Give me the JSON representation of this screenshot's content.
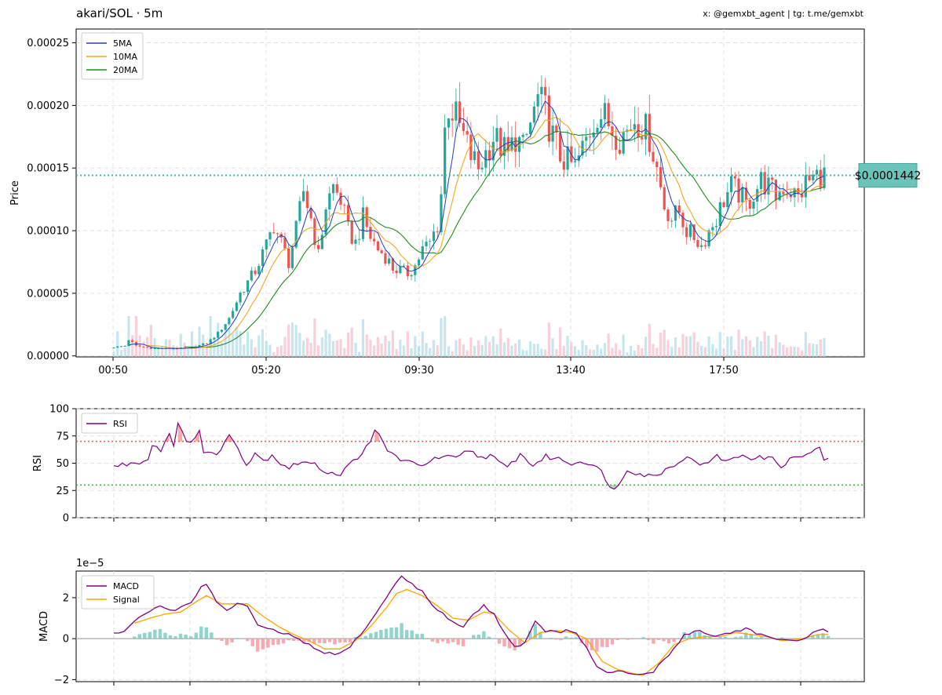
{
  "header": {
    "title": "akari/SOL · 5m",
    "credits": "x: @gemxbt_agent | tg: t.me/gemxbt"
  },
  "colors": {
    "up": "#26a69a",
    "down": "#ef5350",
    "ma5": "#1f3fbf",
    "ma10": "#f5a623",
    "ma20": "#228b22",
    "rsi": "#800080",
    "macd": "#800080",
    "signal": "#ffa500",
    "price_line": "#3fb8b0"
  },
  "chart_data": [
    {
      "type": "candlestick",
      "panel": "price",
      "ylabel": "Price",
      "ylim": [
        -8e-07,
        0.000261
      ],
      "yticks": [
        "0.00000",
        "0.00005",
        "0.00010",
        "0.00015",
        "0.00020",
        "0.00025"
      ],
      "ytick_values": [
        0,
        5e-05,
        0.0001,
        0.00015,
        0.0002,
        0.00025
      ],
      "xticks": [
        "00:50",
        "05:20",
        "09:30",
        "13:40",
        "17:50"
      ],
      "current_price": 0.0001442,
      "current_price_label": "$0.0001442",
      "legend": [
        "5MA",
        "10MA",
        "20MA"
      ],
      "legend_position": "top-left",
      "grid": true,
      "close_keypoints": [
        [
          0,
          7e-06
        ],
        [
          3,
          8e-06
        ],
        [
          4,
          1.3e-05
        ],
        [
          6,
          8e-06
        ],
        [
          10,
          6e-06
        ],
        [
          20,
          6e-06
        ],
        [
          25,
          1e-05
        ],
        [
          28,
          1.8e-05
        ],
        [
          31,
          3e-05
        ],
        [
          34,
          5e-05
        ],
        [
          38,
          6.8e-05
        ],
        [
          41,
          8.8e-05
        ],
        [
          43,
          0.000105
        ],
        [
          45,
          9e-05
        ],
        [
          47,
          7.5e-05
        ],
        [
          49,
          0.0001
        ],
        [
          51,
          0.000132
        ],
        [
          53,
          0.00011
        ],
        [
          55,
          8e-05
        ],
        [
          57,
          0.00012
        ],
        [
          59,
          0.000135
        ],
        [
          61,
          0.000125
        ],
        [
          63,
          0.0001
        ],
        [
          65,
          9e-05
        ],
        [
          67,
          0.00011
        ],
        [
          69,
          9.5e-05
        ],
        [
          71,
          8.5e-05
        ],
        [
          73,
          8e-05
        ],
        [
          75,
          7e-05
        ],
        [
          77,
          6.8e-05
        ],
        [
          79,
          6.6e-05
        ],
        [
          81,
          7.2e-05
        ],
        [
          83,
          8.5e-05
        ],
        [
          85,
          9e-05
        ],
        [
          87,
          0.000105
        ],
        [
          88,
          0.00013
        ],
        [
          89,
          0.00018
        ],
        [
          90,
          0.0002
        ],
        [
          92,
          0.00019
        ],
        [
          94,
          0.000175
        ],
        [
          96,
          0.00016
        ],
        [
          98,
          0.00015
        ],
        [
          100,
          0.000162
        ],
        [
          102,
          0.000175
        ],
        [
          104,
          0.000168
        ],
        [
          106,
          0.00016
        ],
        [
          108,
          0.000175
        ],
        [
          110,
          0.000165
        ],
        [
          112,
          0.000185
        ],
        [
          114,
          0.000205
        ],
        [
          116,
          0.000195
        ],
        [
          118,
          0.000175
        ],
        [
          120,
          0.00016
        ],
        [
          122,
          0.000155
        ],
        [
          124,
          0.00015
        ],
        [
          126,
          0.000165
        ],
        [
          128,
          0.00018
        ],
        [
          130,
          0.000195
        ],
        [
          132,
          0.00019
        ],
        [
          134,
          0.000182
        ],
        [
          136,
          0.000175
        ],
        [
          138,
          0.00018
        ],
        [
          140,
          0.00019
        ],
        [
          142,
          0.000185
        ],
        [
          144,
          0.000175
        ],
        [
          146,
          0.00015
        ],
        [
          148,
          0.00012
        ],
        [
          150,
          0.00011
        ],
        [
          152,
          0.000115
        ],
        [
          154,
          0.0001
        ],
        [
          156,
          9.5e-05
        ],
        [
          158,
          8.8e-05
        ],
        [
          160,
          0.0001
        ],
        [
          162,
          0.00011
        ],
        [
          164,
          0.000125
        ],
        [
          166,
          0.000135
        ],
        [
          168,
          0.00013
        ],
        [
          170,
          0.00012
        ],
        [
          172,
          0.00013
        ],
        [
          174,
          0.00014
        ],
        [
          176,
          0.000135
        ],
        [
          178,
          0.000128
        ],
        [
          180,
          0.000135
        ],
        [
          182,
          0.000132
        ],
        [
          184,
          0.000126
        ],
        [
          186,
          0.000138
        ],
        [
          188,
          0.000142
        ],
        [
          190,
          0.000145
        ],
        [
          191,
          0.000144
        ]
      ]
    },
    {
      "type": "line",
      "panel": "rsi",
      "ylabel": "RSI",
      "ylim": [
        0,
        100
      ],
      "yticks": [
        "0",
        "25",
        "50",
        "75",
        "100"
      ],
      "ytick_values": [
        0,
        25,
        50,
        75,
        100
      ],
      "overbought": 70,
      "oversold": 30,
      "legend": [
        "RSI"
      ],
      "legend_position": "top-left",
      "grid": true,
      "rsi_keypoints": [
        [
          0,
          47
        ],
        [
          4,
          50
        ],
        [
          8,
          53
        ],
        [
          9,
          68
        ],
        [
          11,
          62
        ],
        [
          13,
          78
        ],
        [
          14,
          68
        ],
        [
          15,
          86
        ],
        [
          17,
          68
        ],
        [
          19,
          75
        ],
        [
          20,
          80
        ],
        [
          21,
          60
        ],
        [
          23,
          58
        ],
        [
          25,
          62
        ],
        [
          27,
          76
        ],
        [
          29,
          66
        ],
        [
          31,
          48
        ],
        [
          33,
          60
        ],
        [
          35,
          52
        ],
        [
          37,
          58
        ],
        [
          39,
          50
        ],
        [
          41,
          46
        ],
        [
          44,
          52
        ],
        [
          47,
          48
        ],
        [
          50,
          42
        ],
        [
          53,
          40
        ],
        [
          56,
          52
        ],
        [
          58,
          60
        ],
        [
          60,
          68
        ],
        [
          61,
          79
        ],
        [
          62,
          76
        ],
        [
          64,
          62
        ],
        [
          66,
          56
        ],
        [
          68,
          52
        ],
        [
          71,
          48
        ],
        [
          74,
          52
        ],
        [
          77,
          56
        ],
        [
          80,
          54
        ],
        [
          83,
          62
        ],
        [
          86,
          55
        ],
        [
          88,
          58
        ],
        [
          90,
          50
        ],
        [
          92,
          46
        ],
        [
          95,
          58
        ],
        [
          98,
          48
        ],
        [
          101,
          56
        ],
        [
          104,
          54
        ],
        [
          107,
          50
        ],
        [
          110,
          52
        ],
        [
          112,
          48
        ],
        [
          114,
          42
        ],
        [
          116,
          30
        ],
        [
          117,
          25
        ],
        [
          118,
          30
        ],
        [
          120,
          45
        ],
        [
          123,
          40
        ],
        [
          126,
          38
        ],
        [
          129,
          44
        ],
        [
          132,
          52
        ],
        [
          135,
          55
        ],
        [
          138,
          48
        ],
        [
          141,
          56
        ],
        [
          144,
          52
        ],
        [
          147,
          58
        ],
        [
          150,
          54
        ],
        [
          153,
          56
        ],
        [
          156,
          48
        ],
        [
          159,
          55
        ],
        [
          162,
          58
        ],
        [
          165,
          63
        ],
        [
          166,
          54
        ],
        [
          167,
          54
        ]
      ]
    },
    {
      "type": "line+bar",
      "panel": "macd",
      "ylabel": "MACD",
      "scale_label": "1e−5",
      "ylim": [
        -2.1,
        3.3
      ],
      "yticks": [
        "−2",
        "0",
        "2"
      ],
      "ytick_values": [
        -2,
        0,
        2
      ],
      "legend": [
        "MACD",
        "Signal"
      ],
      "legend_position": "top-left",
      "grid": true,
      "macd_keypoints": [
        [
          0,
          0.25
        ],
        [
          2,
          0.35
        ],
        [
          4,
          0.8
        ],
        [
          6,
          1.2
        ],
        [
          9,
          1.6
        ],
        [
          11,
          1.4
        ],
        [
          13,
          1.5
        ],
        [
          15,
          1.8
        ],
        [
          17,
          2.5
        ],
        [
          18,
          2.6
        ],
        [
          20,
          1.8
        ],
        [
          22,
          1.4
        ],
        [
          24,
          1.7
        ],
        [
          26,
          1.6
        ],
        [
          28,
          0.6
        ],
        [
          31,
          0.4
        ],
        [
          34,
          0.2
        ],
        [
          37,
          -0.2
        ],
        [
          40,
          -0.6
        ],
        [
          43,
          -0.8
        ],
        [
          45,
          -0.6
        ],
        [
          48,
          0.2
        ],
        [
          51,
          1.2
        ],
        [
          53,
          2.0
        ],
        [
          55,
          2.8
        ],
        [
          56,
          3.0
        ],
        [
          58,
          2.7
        ],
        [
          60,
          2.3
        ],
        [
          62,
          1.6
        ],
        [
          64,
          1.2
        ],
        [
          66,
          0.8
        ],
        [
          68,
          0.6
        ],
        [
          70,
          1.2
        ],
        [
          72,
          1.6
        ],
        [
          74,
          1.2
        ],
        [
          76,
          0.3
        ],
        [
          78,
          -0.4
        ],
        [
          80,
          -0.2
        ],
        [
          82,
          0.8
        ],
        [
          84,
          0.4
        ],
        [
          86,
          0.3
        ],
        [
          88,
          0.4
        ],
        [
          90,
          0.2
        ],
        [
          92,
          -0.4
        ],
        [
          94,
          -1.4
        ],
        [
          96,
          -1.7
        ],
        [
          99,
          -1.6
        ],
        [
          102,
          -1.8
        ],
        [
          105,
          -1.6
        ],
        [
          108,
          -0.8
        ],
        [
          111,
          0.2
        ],
        [
          114,
          0.4
        ],
        [
          117,
          0.1
        ],
        [
          120,
          0.3
        ],
        [
          123,
          0.5
        ],
        [
          126,
          0.2
        ],
        [
          129,
          -0.1
        ],
        [
          132,
          -0.1
        ],
        [
          135,
          0.1
        ],
        [
          137,
          0.4
        ],
        [
          139,
          0.4
        ]
      ],
      "signal_keypoints": [
        [
          4,
          0.75
        ],
        [
          7,
          1.0
        ],
        [
          10,
          1.2
        ],
        [
          13,
          1.3
        ],
        [
          16,
          1.8
        ],
        [
          18,
          2.1
        ],
        [
          21,
          1.7
        ],
        [
          24,
          1.7
        ],
        [
          26,
          1.7
        ],
        [
          29,
          1.1
        ],
        [
          32,
          0.6
        ],
        [
          35,
          0.2
        ],
        [
          38,
          -0.1
        ],
        [
          41,
          -0.5
        ],
        [
          44,
          -0.5
        ],
        [
          47,
          -0.1
        ],
        [
          50,
          0.6
        ],
        [
          53,
          1.5
        ],
        [
          55,
          2.2
        ],
        [
          57,
          2.4
        ],
        [
          60,
          2.1
        ],
        [
          63,
          1.6
        ],
        [
          66,
          1.0
        ],
        [
          69,
          0.9
        ],
        [
          72,
          1.3
        ],
        [
          74,
          1.2
        ],
        [
          77,
          0.4
        ],
        [
          80,
          -0.2
        ],
        [
          83,
          0.3
        ],
        [
          86,
          0.4
        ],
        [
          89,
          0.3
        ],
        [
          92,
          0.0
        ],
        [
          95,
          -1.1
        ],
        [
          98,
          -1.5
        ],
        [
          101,
          -1.7
        ],
        [
          103,
          -1.8
        ],
        [
          106,
          -1.2
        ],
        [
          109,
          -0.3
        ],
        [
          112,
          0.0
        ],
        [
          115,
          0.1
        ],
        [
          118,
          0.1
        ],
        [
          121,
          0.3
        ],
        [
          124,
          0.2
        ],
        [
          127,
          0.1
        ],
        [
          130,
          -0.1
        ],
        [
          134,
          0.0
        ],
        [
          137,
          0.2
        ],
        [
          139,
          0.2
        ]
      ]
    }
  ]
}
